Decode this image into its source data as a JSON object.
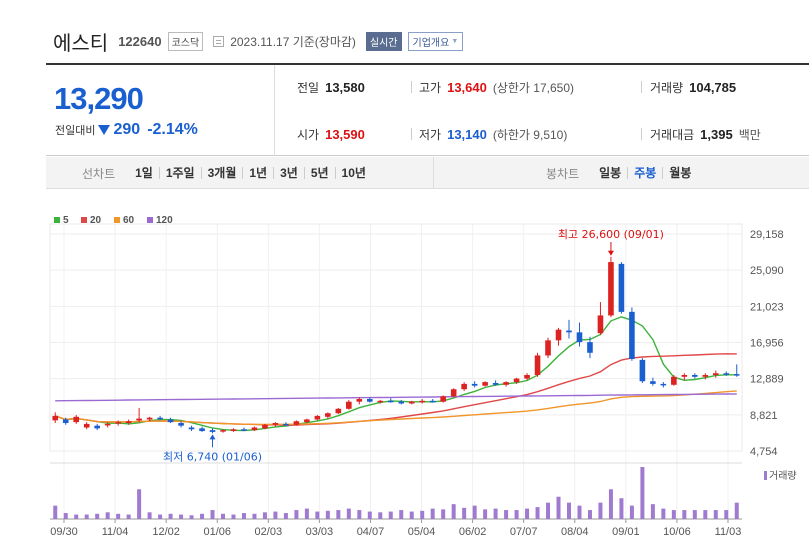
{
  "header": {
    "name": "에스티",
    "code": "122640",
    "market": "코스닥",
    "date": "2023.11.17 기준(장마감)",
    "realtime": "실시간",
    "company_info": "기업개요"
  },
  "price": {
    "current": "13,290",
    "change_label": "전일대비",
    "change": "290",
    "change_pct": "-2.14%"
  },
  "stats": {
    "prev_close": {
      "label": "전일",
      "value": "13,580"
    },
    "high": {
      "label": "고가",
      "value": "13,640",
      "sub": "(상한가 17,650)"
    },
    "volume": {
      "label": "거래량",
      "value": "104,785"
    },
    "open": {
      "label": "시가",
      "value": "13,590"
    },
    "low": {
      "label": "저가",
      "value": "13,140",
      "sub": "(하한가 9,510)"
    },
    "amount": {
      "label": "거래대금",
      "value": "1,395",
      "unit": "백만"
    }
  },
  "toolbar": {
    "line_label": "선차트",
    "line_periods": [
      "1일",
      "1주일",
      "3개월",
      "1년",
      "3년",
      "5년",
      "10년"
    ],
    "candle_label": "봉차트",
    "candle_periods": [
      "일봉",
      "주봉",
      "월봉"
    ],
    "active_candle": "주봉"
  },
  "colors": {
    "up": "#dd2222",
    "down": "#1a5fd0",
    "ma5": "#3cb43c",
    "ma20": "#e04848",
    "ma60": "#f0962a",
    "ma120": "#9a6ad2",
    "volume": "#a07ad0"
  },
  "chart_data": {
    "type": "candlestick",
    "legend": [
      "5",
      "20",
      "60",
      "120"
    ],
    "ylim": [
      4754,
      29158
    ],
    "y_ticks": [
      "29,158",
      "25,090",
      "21,023",
      "16,956",
      "12,889",
      "8,821",
      "4,754"
    ],
    "x_labels": [
      "09/30",
      "11/04",
      "12/02",
      "01/06",
      "02/03",
      "03/03",
      "04/07",
      "05/04",
      "06/02",
      "07/07",
      "08/04",
      "09/01",
      "10/06",
      "11/03"
    ],
    "annotations": {
      "high": "최고 26,600 (09/01)",
      "low": "최저 6,740 (01/06)"
    },
    "volume_label": "거래량",
    "candles": [
      [
        8200,
        9100,
        7900,
        8700
      ],
      [
        8300,
        8500,
        7700,
        7900
      ],
      [
        8000,
        8800,
        7800,
        8600
      ],
      [
        7400,
        8000,
        7200,
        7800
      ],
      [
        7600,
        7800,
        7100,
        7300
      ],
      [
        7700,
        8000,
        7400,
        7800
      ],
      [
        7900,
        8200,
        7600,
        8000
      ],
      [
        7900,
        8300,
        7700,
        8100
      ],
      [
        8200,
        9600,
        8000,
        8400
      ],
      [
        8300,
        8600,
        8100,
        8500
      ],
      [
        8500,
        8700,
        8200,
        8400
      ],
      [
        8300,
        8500,
        7900,
        8000
      ],
      [
        7900,
        8100,
        7400,
        7600
      ],
      [
        7400,
        7600,
        7000,
        7200
      ],
      [
        7300,
        7500,
        6900,
        7000
      ],
      [
        7100,
        7300,
        6740,
        6900
      ],
      [
        7000,
        7200,
        6800,
        7100
      ],
      [
        7000,
        7300,
        6900,
        7200
      ],
      [
        7200,
        7400,
        7000,
        7100
      ],
      [
        7100,
        7500,
        7000,
        7400
      ],
      [
        7300,
        7800,
        7200,
        7700
      ],
      [
        7700,
        8000,
        7500,
        7900
      ],
      [
        7800,
        8000,
        7600,
        7700
      ],
      [
        7700,
        8200,
        7600,
        8100
      ],
      [
        8000,
        8400,
        7900,
        8300
      ],
      [
        8300,
        8800,
        8200,
        8700
      ],
      [
        8600,
        9100,
        8400,
        9000
      ],
      [
        9000,
        9600,
        8900,
        9500
      ],
      [
        9500,
        10500,
        9400,
        10300
      ],
      [
        10300,
        10800,
        10000,
        10600
      ],
      [
        10600,
        10800,
        10200,
        10300
      ],
      [
        10300,
        10500,
        10100,
        10400
      ],
      [
        10400,
        10700,
        10200,
        10300
      ],
      [
        10300,
        10500,
        10000,
        10100
      ],
      [
        10100,
        10400,
        10000,
        10300
      ],
      [
        10300,
        10600,
        10100,
        10400
      ],
      [
        10400,
        10600,
        10200,
        10300
      ],
      [
        10300,
        11000,
        10200,
        10900
      ],
      [
        10900,
        11800,
        10800,
        11700
      ],
      [
        11700,
        12500,
        11500,
        12300
      ],
      [
        12300,
        12600,
        11900,
        12100
      ],
      [
        12100,
        12600,
        12000,
        12500
      ],
      [
        12400,
        12700,
        12100,
        12200
      ],
      [
        12200,
        12600,
        12000,
        12500
      ],
      [
        12500,
        13000,
        12300,
        12900
      ],
      [
        12900,
        13500,
        12700,
        13300
      ],
      [
        13300,
        15800,
        13100,
        15500
      ],
      [
        15500,
        17500,
        15200,
        17200
      ],
      [
        17200,
        18600,
        16600,
        18400
      ],
      [
        18300,
        19500,
        17400,
        18100
      ],
      [
        18100,
        19200,
        16500,
        17000
      ],
      [
        17000,
        17600,
        15200,
        15800
      ],
      [
        18000,
        21500,
        17800,
        20000
      ],
      [
        20000,
        26600,
        19800,
        26000
      ],
      [
        25800,
        26000,
        20200,
        20400
      ],
      [
        20400,
        20900,
        14900,
        15100
      ],
      [
        15000,
        15200,
        12400,
        12600
      ],
      [
        12600,
        13000,
        12100,
        12300
      ],
      [
        12300,
        12500,
        11900,
        12200
      ],
      [
        12200,
        13300,
        12100,
        13100
      ],
      [
        13100,
        13500,
        12700,
        13300
      ],
      [
        13300,
        13500,
        12900,
        13100
      ],
      [
        13100,
        13500,
        12800,
        13300
      ],
      [
        13300,
        13800,
        13000,
        13500
      ],
      [
        13500,
        13700,
        13200,
        13400
      ],
      [
        13400,
        14500,
        13100,
        13290
      ]
    ],
    "volumes": [
      18,
      8,
      6,
      6,
      7,
      9,
      7,
      6,
      40,
      9,
      6,
      7,
      6,
      5,
      7,
      12,
      7,
      6,
      8,
      7,
      9,
      10,
      8,
      12,
      14,
      10,
      11,
      12,
      14,
      12,
      10,
      9,
      10,
      12,
      10,
      11,
      14,
      13,
      20,
      15,
      18,
      13,
      14,
      12,
      12,
      14,
      16,
      22,
      30,
      22,
      18,
      12,
      22,
      40,
      28,
      18,
      70,
      20,
      14,
      12,
      12,
      12,
      12,
      12,
      12,
      22
    ]
  }
}
